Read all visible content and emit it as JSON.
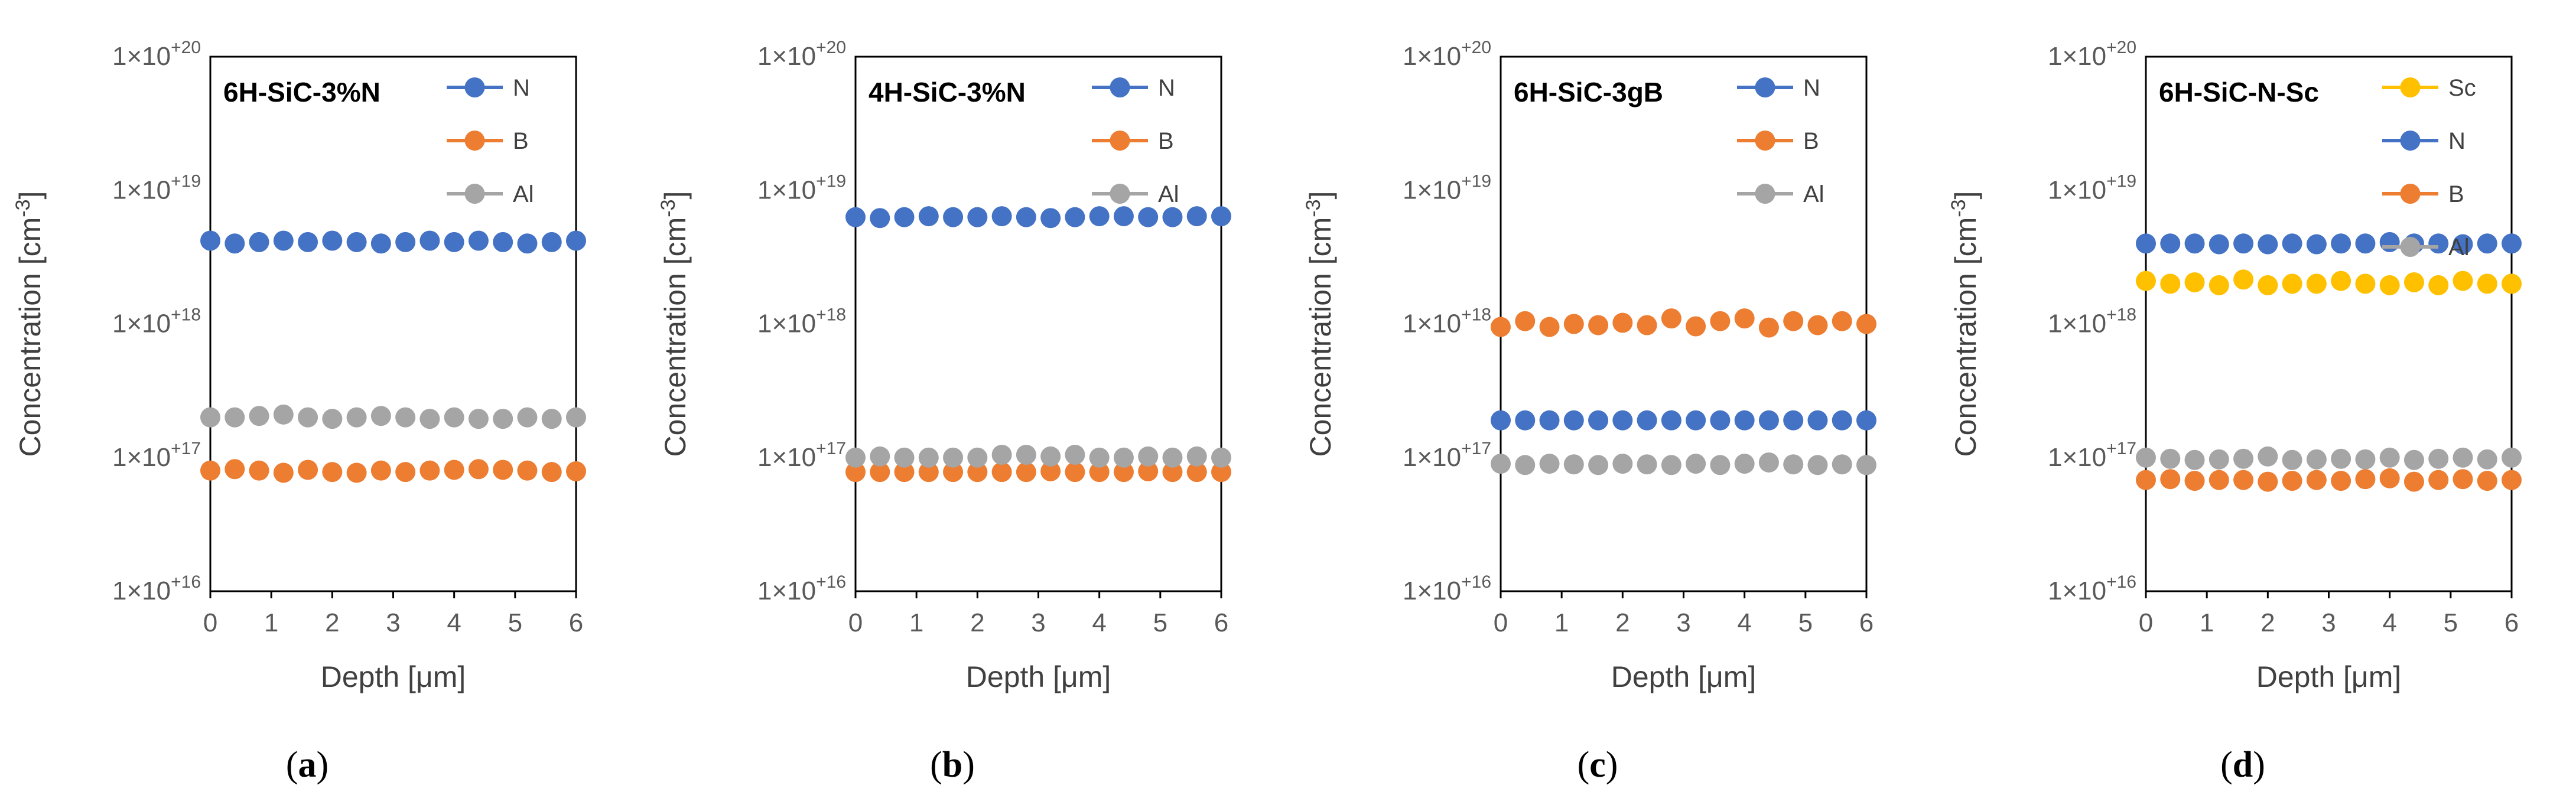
{
  "chart_data": [
    {
      "type": "scatter",
      "title": "6H-SiC-3%N",
      "caption": "a",
      "xlabel": "Depth [μm]",
      "ylabel": "Concentration [cm⁻³]",
      "ylabel_main": "Concentration [cm",
      "ylabel_sup": "-3",
      "ylabel_end": "]",
      "y_scale": "log",
      "xlim": [
        0,
        6
      ],
      "ylim": [
        1e+16,
        1e+20
      ],
      "x_ticks": [
        "0",
        "1",
        "2",
        "3",
        "4",
        "5",
        "6"
      ],
      "y_ticks": [
        {
          "mantissa": "1×10",
          "exp": "+16",
          "value": 1e+16
        },
        {
          "mantissa": "1×10",
          "exp": "+17",
          "value": 1e+17
        },
        {
          "mantissa": "1×10",
          "exp": "+18",
          "value": 1e+18
        },
        {
          "mantissa": "1×10",
          "exp": "+19",
          "value": 1e+19
        },
        {
          "mantissa": "1×10",
          "exp": "+20",
          "value": 1e+20
        }
      ],
      "legend_position": "top-right",
      "x": [
        0,
        0.4,
        0.8,
        1.2,
        1.6,
        2.0,
        2.4,
        2.8,
        3.2,
        3.6,
        4.0,
        4.4,
        4.8,
        5.2,
        5.6,
        6.0
      ],
      "series": [
        {
          "name": "N",
          "color": "#4472C4",
          "values": [
            4.2e+18,
            4e+18,
            4.1e+18,
            4.2e+18,
            4.1e+18,
            4.2e+18,
            4.1e+18,
            4e+18,
            4.1e+18,
            4.2e+18,
            4.1e+18,
            4.2e+18,
            4.1e+18,
            4e+18,
            4.1e+18,
            4.2e+18
          ]
        },
        {
          "name": "B",
          "color": "#ED7D31",
          "values": [
            8e+16,
            8.2e+16,
            8e+16,
            7.7e+16,
            8.1e+16,
            7.8e+16,
            7.7e+16,
            8e+16,
            7.8e+16,
            8e+16,
            8.1e+16,
            8.2e+16,
            8.1e+16,
            8e+16,
            7.8e+16,
            7.9e+16
          ]
        },
        {
          "name": "Al",
          "color": "#A5A5A5",
          "values": [
            2e+17,
            2e+17,
            2.05e+17,
            2.1e+17,
            2e+17,
            1.95e+17,
            2e+17,
            2.05e+17,
            2e+17,
            1.95e+17,
            2e+17,
            1.95e+17,
            1.95e+17,
            2e+17,
            1.95e+17,
            2e+17
          ]
        }
      ]
    },
    {
      "type": "scatter",
      "title": "4H-SiC-3%N",
      "caption": "b",
      "xlabel": "Depth [μm]",
      "ylabel": "Concentration [cm⁻³]",
      "ylabel_main": "Concentration [cm",
      "ylabel_sup": "-3",
      "ylabel_end": "]",
      "y_scale": "log",
      "xlim": [
        0,
        6
      ],
      "ylim": [
        1e+16,
        1e+20
      ],
      "x_ticks": [
        "0",
        "1",
        "2",
        "3",
        "4",
        "5",
        "6"
      ],
      "y_ticks": [
        {
          "mantissa": "1×10",
          "exp": "+16",
          "value": 1e+16
        },
        {
          "mantissa": "1×10",
          "exp": "+17",
          "value": 1e+17
        },
        {
          "mantissa": "1×10",
          "exp": "+18",
          "value": 1e+18
        },
        {
          "mantissa": "1×10",
          "exp": "+19",
          "value": 1e+19
        },
        {
          "mantissa": "1×10",
          "exp": "+20",
          "value": 1e+20
        }
      ],
      "legend_position": "top-right",
      "x": [
        0,
        0.4,
        0.8,
        1.2,
        1.6,
        2.0,
        2.4,
        2.8,
        3.2,
        3.6,
        4.0,
        4.4,
        4.8,
        5.2,
        5.6,
        6.0
      ],
      "series": [
        {
          "name": "N",
          "color": "#4472C4",
          "values": [
            6.3e+18,
            6.2e+18,
            6.3e+18,
            6.4e+18,
            6.3e+18,
            6.3e+18,
            6.4e+18,
            6.3e+18,
            6.2e+18,
            6.3e+18,
            6.4e+18,
            6.4e+18,
            6.3e+18,
            6.3e+18,
            6.4e+18,
            6.4e+18
          ]
        },
        {
          "name": "B",
          "color": "#ED7D31",
          "values": [
            7.8e+16,
            7.8e+16,
            7.8e+16,
            7.8e+16,
            7.8e+16,
            7.8e+16,
            7.8e+16,
            7.8e+16,
            7.9e+16,
            7.8e+16,
            7.8e+16,
            7.8e+16,
            7.9e+16,
            7.8e+16,
            7.8e+16,
            7.8e+16
          ]
        },
        {
          "name": "Al",
          "color": "#A5A5A5",
          "values": [
            1e+17,
            1.02e+17,
            1e+17,
            1e+17,
            1e+17,
            1e+17,
            1.05e+17,
            1.05e+17,
            1.02e+17,
            1.05e+17,
            1e+17,
            1e+17,
            1.02e+17,
            1e+17,
            1.02e+17,
            1e+17
          ]
        }
      ]
    },
    {
      "type": "scatter",
      "title": "6H-SiC-3gB",
      "caption": "c",
      "xlabel": "Depth [μm]",
      "ylabel": "Concentration [cm⁻³]",
      "ylabel_main": "Concentration [cm",
      "ylabel_sup": "-3",
      "ylabel_end": "]",
      "y_scale": "log",
      "xlim": [
        0,
        6
      ],
      "ylim": [
        1e+16,
        1e+20
      ],
      "x_ticks": [
        "0",
        "1",
        "2",
        "3",
        "4",
        "5",
        "6"
      ],
      "y_ticks": [
        {
          "mantissa": "1×10",
          "exp": "+16",
          "value": 1e+16
        },
        {
          "mantissa": "1×10",
          "exp": "+17",
          "value": 1e+17
        },
        {
          "mantissa": "1×10",
          "exp": "+18",
          "value": 1e+18
        },
        {
          "mantissa": "1×10",
          "exp": "+19",
          "value": 1e+19
        },
        {
          "mantissa": "1×10",
          "exp": "+20",
          "value": 1e+20
        }
      ],
      "legend_position": "top-right",
      "x": [
        0,
        0.4,
        0.8,
        1.2,
        1.6,
        2.0,
        2.4,
        2.8,
        3.2,
        3.6,
        4.0,
        4.4,
        4.8,
        5.2,
        5.6,
        6.0
      ],
      "series": [
        {
          "name": "N",
          "color": "#4472C4",
          "values": [
            1.9e+17,
            1.9e+17,
            1.9e+17,
            1.9e+17,
            1.9e+17,
            1.9e+17,
            1.9e+17,
            1.9e+17,
            1.9e+17,
            1.9e+17,
            1.9e+17,
            1.9e+17,
            1.9e+17,
            1.9e+17,
            1.9e+17,
            1.9e+17
          ]
        },
        {
          "name": "B",
          "color": "#ED7D31",
          "values": [
            9.5e+17,
            1.05e+18,
            9.5e+17,
            1e+18,
            9.8e+17,
            1.02e+18,
            9.8e+17,
            1.1e+18,
            9.6e+17,
            1.05e+18,
            1.1e+18,
            9.4e+17,
            1.05e+18,
            9.8e+17,
            1.05e+18,
            1e+18
          ]
        },
        {
          "name": "Al",
          "color": "#A5A5A5",
          "values": [
            9e+16,
            8.8e+16,
            9e+16,
            8.9e+16,
            8.8e+16,
            9e+16,
            8.9e+16,
            8.8e+16,
            9e+16,
            8.8e+16,
            9e+16,
            9.2e+16,
            8.9e+16,
            8.8e+16,
            8.9e+16,
            8.8e+16
          ]
        }
      ]
    },
    {
      "type": "scatter",
      "title": "6H-SiC-N-Sc",
      "caption": "d",
      "xlabel": "Depth [μm]",
      "ylabel": "Concentration [cm⁻³]",
      "ylabel_main": "Concentration [cm",
      "ylabel_sup": "-3",
      "ylabel_end": "]",
      "y_scale": "log",
      "xlim": [
        0,
        6
      ],
      "ylim": [
        1e+16,
        1e+20
      ],
      "x_ticks": [
        "0",
        "1",
        "2",
        "3",
        "4",
        "5",
        "6"
      ],
      "y_ticks": [
        {
          "mantissa": "1×10",
          "exp": "+16",
          "value": 1e+16
        },
        {
          "mantissa": "1×10",
          "exp": "+17",
          "value": 1e+17
        },
        {
          "mantissa": "1×10",
          "exp": "+18",
          "value": 1e+18
        },
        {
          "mantissa": "1×10",
          "exp": "+19",
          "value": 1e+19
        },
        {
          "mantissa": "1×10",
          "exp": "+20",
          "value": 1e+20
        }
      ],
      "legend_position": "top-right",
      "x": [
        0,
        0.4,
        0.8,
        1.2,
        1.6,
        2.0,
        2.4,
        2.8,
        3.2,
        3.6,
        4.0,
        4.4,
        4.8,
        5.2,
        5.6,
        6.0
      ],
      "series": [
        {
          "name": "Sc",
          "color": "#FFC000",
          "values": [
            2.1e+18,
            2e+18,
            2.05e+18,
            1.95e+18,
            2.15e+18,
            1.95e+18,
            2e+18,
            2e+18,
            2.1e+18,
            2e+18,
            1.95e+18,
            2.05e+18,
            1.95e+18,
            2.1e+18,
            2e+18,
            2e+18
          ]
        },
        {
          "name": "N",
          "color": "#4472C4",
          "values": [
            4e+18,
            4e+18,
            4e+18,
            3.95e+18,
            4e+18,
            3.95e+18,
            4e+18,
            3.95e+18,
            4e+18,
            4e+18,
            4.1e+18,
            4e+18,
            4e+18,
            3.95e+18,
            4e+18,
            4e+18
          ]
        },
        {
          "name": "B",
          "color": "#ED7D31",
          "values": [
            6.8e+16,
            6.9e+16,
            6.7e+16,
            6.8e+16,
            6.8e+16,
            6.6e+16,
            6.7e+16,
            6.8e+16,
            6.7e+16,
            6.9e+16,
            7e+16,
            6.6e+16,
            6.8e+16,
            6.9e+16,
            6.7e+16,
            6.8e+16
          ]
        },
        {
          "name": "Al",
          "color": "#A5A5A5",
          "values": [
            1e+17,
            9.8e+16,
            9.6e+16,
            9.7e+16,
            9.8e+16,
            1.02e+17,
            9.6e+16,
            9.7e+16,
            9.8e+16,
            9.7e+16,
            1e+17,
            9.6e+16,
            9.8e+16,
            1e+17,
            9.7e+16,
            1e+17
          ]
        }
      ]
    }
  ]
}
